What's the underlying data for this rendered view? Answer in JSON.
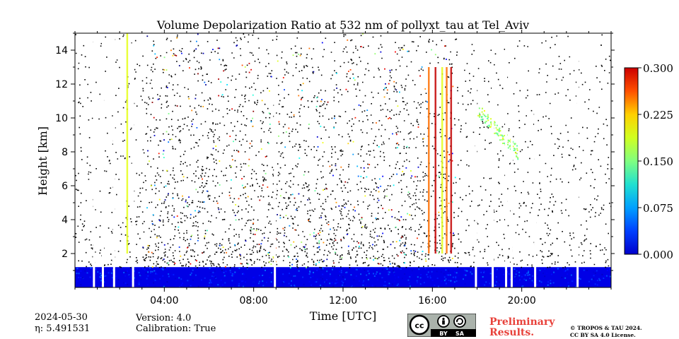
{
  "chart_data": {
    "type": "heatmap",
    "title": "Volume Depolarization Ratio at 532 nm of pollyxt_tau at Tel_Aviv",
    "xlabel": "Time [UTC]",
    "ylabel": "Height [km]",
    "x_range_hours": [
      0,
      24
    ],
    "ylim": [
      0,
      15
    ],
    "xticks": [
      "04:00",
      "08:00",
      "12:00",
      "16:00",
      "20:00"
    ],
    "xtick_hours": [
      4,
      8,
      12,
      16,
      20
    ],
    "yticks": [
      "2",
      "4",
      "6",
      "8",
      "10",
      "12",
      "14"
    ],
    "ytick_values": [
      2,
      4,
      6,
      8,
      10,
      12,
      14
    ],
    "colorbar": {
      "min": 0.0,
      "max": 0.3,
      "ticks": [
        "0.000",
        "0.075",
        "0.150",
        "0.225",
        "0.300"
      ],
      "colormap": "jet"
    },
    "features": {
      "surface_layer_top_km": 1.2,
      "surface_layer_value": 0.03,
      "data_gaps_hours": [
        0.85,
        1.25,
        1.75,
        2.6,
        8.95,
        17.95,
        18.7,
        19.3,
        19.55,
        20.6,
        22.5
      ],
      "dust_streak_hours": [
        2.3,
        15.8,
        16.1,
        16.4,
        16.6,
        16.8
      ],
      "elevated_layer": {
        "hour_start": 18.0,
        "hour_end": 19.8,
        "height_start_km": 10.5,
        "height_end_km": 8.0,
        "value": 0.16
      }
    }
  },
  "footer": {
    "date": "2024-05-30",
    "eta_label": "η: 5.491531",
    "version": "Version: 4.0",
    "calibration": "Calibration: True",
    "preliminary_line1": "Preliminary",
    "preliminary_line2": "Results.",
    "copyright_line1": "© TROPOS & TAU 2024.",
    "copyright_line2": "CC BY SA 4.0 License.",
    "license_badge": {
      "cc": "cc",
      "by": "BY",
      "sa": "SA"
    }
  }
}
